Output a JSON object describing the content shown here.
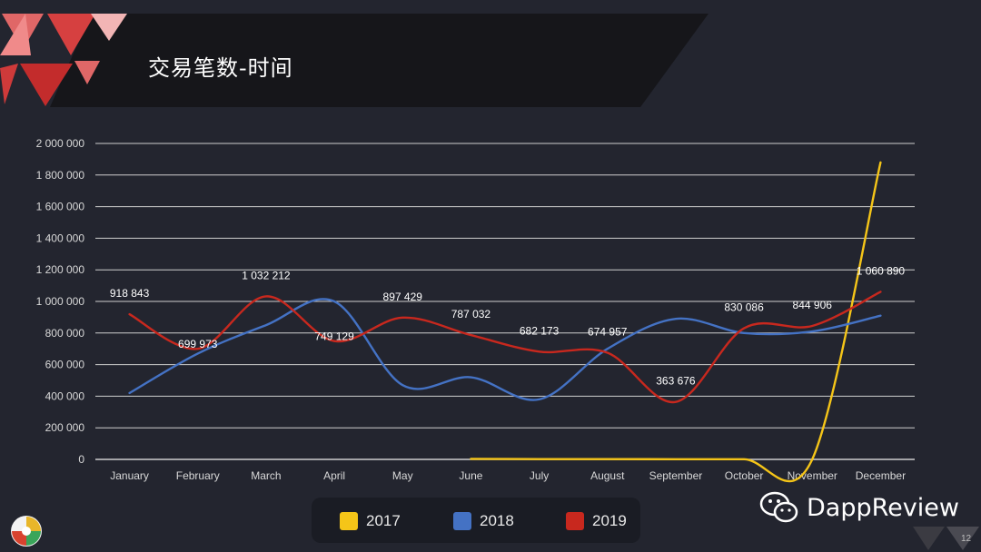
{
  "title": "交易笔数-时间",
  "page_number": "12",
  "brand": {
    "name": "DappReview"
  },
  "colors": {
    "2017": "#f5c518",
    "2018": "#4472c4",
    "2019": "#c8281e",
    "background": "#23252f",
    "grid": "#cfcfcf"
  },
  "chart_data": {
    "type": "line",
    "title": "",
    "xlabel": "",
    "ylabel": "",
    "categories": [
      "January",
      "February",
      "March",
      "April",
      "May",
      "June",
      "July",
      "August",
      "September",
      "October",
      "November",
      "December"
    ],
    "ylim": [
      0,
      2000000
    ],
    "yticks": [
      "2 000 000",
      "1 800 000",
      "1 600 000",
      "1 400 000",
      "1 200 000",
      "1 000 000",
      "800 000",
      "600 000",
      "400 000",
      "200 000",
      "0"
    ],
    "legend_position": "bottom",
    "grid": true,
    "series": [
      {
        "name": "2017",
        "color": "#f5c518",
        "values": [
          null,
          null,
          null,
          null,
          null,
          3000,
          2000,
          2000,
          1000,
          1000,
          1000,
          1880000
        ]
      },
      {
        "name": "2018",
        "color": "#4472c4",
        "values": [
          420000,
          670000,
          850000,
          1000000,
          470000,
          520000,
          380000,
          700000,
          890000,
          800000,
          810000,
          910000
        ]
      },
      {
        "name": "2019",
        "color": "#c8281e",
        "values": [
          918843,
          699973,
          1032212,
          749129,
          897429,
          787032,
          682173,
          674957,
          363676,
          830086,
          844906,
          1060890
        ],
        "labels": [
          "918 843",
          "699 973",
          "1 032 212",
          "749 129",
          "897 429",
          "787 032",
          "682 173",
          "674 957",
          "363 676",
          "830 086",
          "844 906",
          "1 060 890"
        ]
      }
    ]
  }
}
